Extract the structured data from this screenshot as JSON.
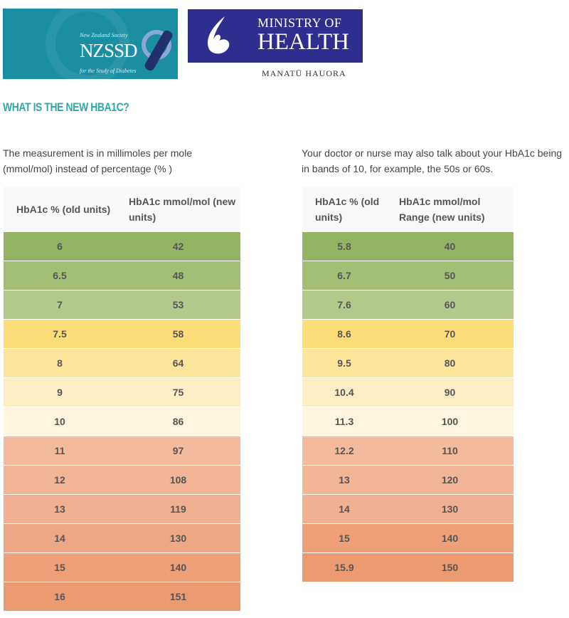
{
  "logos": {
    "nzssd": {
      "top_text": "New Zealand Society",
      "acronym": "NZSSD",
      "bottom_text": "for the Study of Diabetes"
    },
    "moh": {
      "line1": "MINISTRY OF",
      "line2": "HEALTH",
      "subtitle": "MANATŪ HAUORA"
    }
  },
  "title": "WHAT IS THE NEW HBA1C?",
  "left": {
    "intro": "The measurement is in millimoles per mole (mmol/mol) instead of percentage (% )",
    "headers": [
      "HbA1c % (old units)",
      "HbA1c mmol/mol (new units)"
    ],
    "rows": [
      [
        "6",
        "42"
      ],
      [
        "6.5",
        "48"
      ],
      [
        "7",
        "53"
      ],
      [
        "7.5",
        "58"
      ],
      [
        "8",
        "64"
      ],
      [
        "9",
        "75"
      ],
      [
        "10",
        "86"
      ],
      [
        "11",
        "97"
      ],
      [
        "12",
        "108"
      ],
      [
        "13",
        "119"
      ],
      [
        "14",
        "130"
      ],
      [
        "15",
        "140"
      ],
      [
        "16",
        "151"
      ]
    ],
    "colors": [
      "#95b463",
      "#a3bf75",
      "#b4ca8d",
      "#fddd78",
      "#fde59b",
      "#fdeec6",
      "#fdf5df",
      "#f3bb9c",
      "#f2b596",
      "#f1b091",
      "#efa886",
      "#ee9f78",
      "#ec9a6f"
    ]
  },
  "right": {
    "intro": "Your doctor or nurse may also talk about your HbA1c being in bands of 10, for example, the 50s or 60s.",
    "headers": [
      "HbA1c % (old units)",
      "HbA1c mmol/mol Range (new units)"
    ],
    "rows": [
      [
        "5.8",
        "40"
      ],
      [
        "6.7",
        "50"
      ],
      [
        "7.6",
        "60"
      ],
      [
        "8.6",
        "70"
      ],
      [
        "9.5",
        "80"
      ],
      [
        "10.4",
        "90"
      ],
      [
        "11.3",
        "100"
      ],
      [
        "12.2",
        "110"
      ],
      [
        "13",
        "120"
      ],
      [
        "14",
        "130"
      ],
      [
        "15",
        "140"
      ],
      [
        "15.9",
        "150"
      ]
    ],
    "colors": [
      "#95b463",
      "#a3bf75",
      "#b4ca8d",
      "#fddd78",
      "#fde59b",
      "#fdeec6",
      "#fdf5df",
      "#f3bb9c",
      "#f2b596",
      "#f1b091",
      "#ee9f78",
      "#ec9a6f"
    ]
  }
}
